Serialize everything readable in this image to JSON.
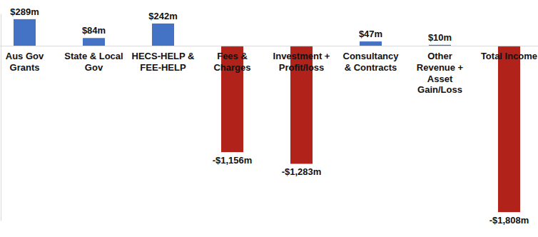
{
  "chart_data": {
    "type": "bar",
    "categories": [
      "Aus Gov Grants",
      "State & Local Gov",
      "HECS-HELP & FEE-HELP",
      "Fees & Charges",
      "Investment + Profit/loss",
      "Consultancy & Contracts",
      "Other Revenue + Asset Gain/Loss",
      "Total Income"
    ],
    "values": [
      289,
      84,
      242,
      -1156,
      -1283,
      47,
      10,
      -1808
    ],
    "value_labels": [
      "$289m",
      "$84m",
      "$242m",
      "-$1,156m",
      "-$1,283m",
      "$47m",
      "$10m",
      "-$1,808m"
    ],
    "colors": [
      "#4472c4",
      "#4472c4",
      "#4472c4",
      "#b0221a",
      "#b0221a",
      "#4472c4",
      "#4472c4",
      "#b0221a"
    ],
    "ylim": [
      -1900,
      350
    ],
    "yticks": [],
    "grid": false,
    "data_labels": true,
    "tick_labels": "x"
  }
}
